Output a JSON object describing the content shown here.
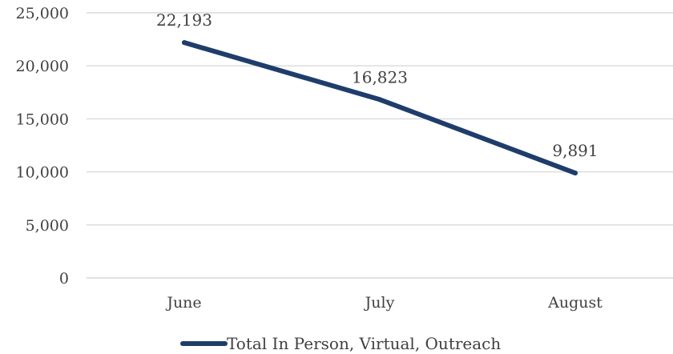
{
  "chart_data": {
    "type": "line",
    "categories": [
      "June",
      "July",
      "August"
    ],
    "series": [
      {
        "name": "Total In Person, Virtual, Outreach",
        "values": [
          22193,
          16823,
          9891
        ],
        "data_labels": [
          "22,193",
          "16,823",
          "9,891"
        ],
        "color": "#1f3d6b"
      }
    ],
    "ylim": [
      0,
      25000
    ],
    "yticks": [
      0,
      5000,
      10000,
      15000,
      20000,
      25000
    ],
    "ytick_labels": [
      "0",
      "5,000",
      "10,000",
      "15,000",
      "20,000",
      "25,000"
    ],
    "grid": true,
    "legend": "bottom",
    "title": "",
    "xlabel": "",
    "ylabel": ""
  }
}
